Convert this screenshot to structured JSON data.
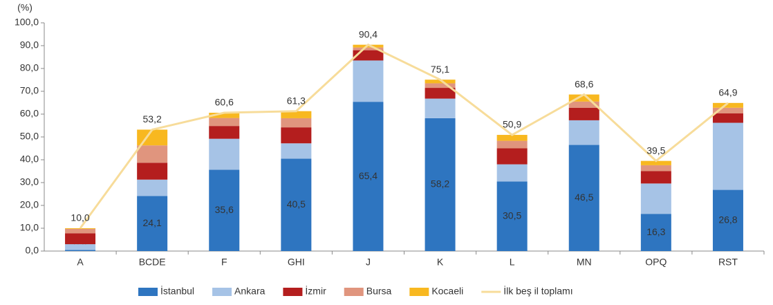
{
  "chart_data": {
    "type": "stacked-bar-line",
    "y_axis_label": "(%)",
    "categories": [
      "A",
      "BCDE",
      "F",
      "GHI",
      "J",
      "K",
      "L",
      "MN",
      "OPQ",
      "RST"
    ],
    "series": [
      {
        "name": "İstanbul",
        "color": "#2e75c0",
        "values": [
          0.5,
          24.1,
          35.6,
          40.5,
          65.4,
          58.2,
          30.5,
          46.5,
          16.3,
          26.8
        ],
        "value_labels": [
          "0,5",
          "24,1",
          "35,6",
          "40,5",
          "65,4",
          "58,2",
          "30,5",
          "46,5",
          "16,3",
          "26,8"
        ]
      },
      {
        "name": "Ankara",
        "color": "#a6c3e6",
        "values": [
          2.5,
          7.2,
          13.6,
          6.7,
          18.1,
          8.6,
          7.5,
          10.8,
          13.3,
          29.4
        ]
      },
      {
        "name": "İzmir",
        "color": "#b41e1e",
        "values": [
          4.8,
          7.4,
          5.6,
          7.0,
          4.5,
          4.7,
          7.0,
          5.5,
          5.4,
          4.1
        ]
      },
      {
        "name": "Bursa",
        "color": "#e0957e",
        "values": [
          1.9,
          7.6,
          3.5,
          4.0,
          1.2,
          2.0,
          3.3,
          2.7,
          2.6,
          2.5
        ]
      },
      {
        "name": "Kocaeli",
        "color": "#f8b820",
        "values": [
          0.3,
          6.9,
          2.3,
          3.1,
          1.2,
          1.6,
          2.6,
          3.1,
          1.9,
          2.1
        ]
      },
      {
        "name": "İlk beş il toplamı",
        "color": "#f7dc9a",
        "type": "line",
        "values": [
          10.0,
          53.2,
          60.6,
          61.3,
          90.4,
          75.1,
          50.9,
          68.6,
          39.5,
          64.9
        ],
        "value_labels": [
          "10,0",
          "53,2",
          "60,6",
          "61,3",
          "90,4",
          "75,1",
          "50,9",
          "68,6",
          "39,5",
          "64,9"
        ]
      }
    ],
    "ylim": [
      0,
      100
    ],
    "yticks": [
      {
        "value": 0,
        "label": "0,0"
      },
      {
        "value": 10,
        "label": "10,0"
      },
      {
        "value": 20,
        "label": "20,0"
      },
      {
        "value": 30,
        "label": "30,0"
      },
      {
        "value": 40,
        "label": "40,0"
      },
      {
        "value": 50,
        "label": "50,0"
      },
      {
        "value": 60,
        "label": "60,0"
      },
      {
        "value": 70,
        "label": "70,0"
      },
      {
        "value": 80,
        "label": "80,0"
      },
      {
        "value": 90,
        "label": "90,0"
      },
      {
        "value": 100,
        "label": "100,0"
      }
    ],
    "legend": "bottom"
  }
}
